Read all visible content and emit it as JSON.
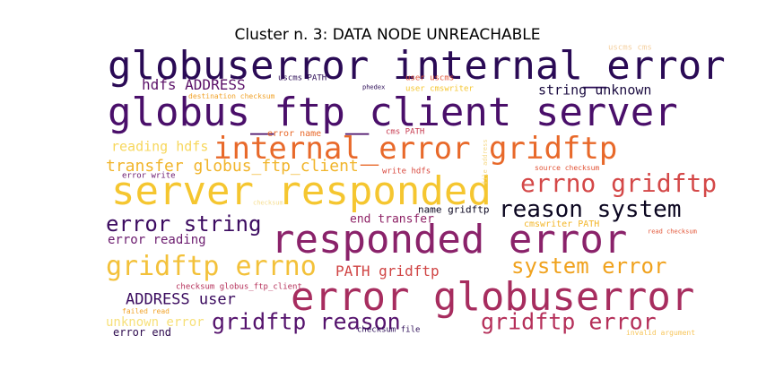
{
  "title": "Cluster n. 3: DATA NODE UNREACHABLE",
  "words": [
    {
      "text": "globuserror internal_error",
      "color": "#2a0a55"
    },
    {
      "text": "globus_ftp_client server",
      "color": "#4a0f6a"
    },
    {
      "text": "internal_error gridftp",
      "color": "#e8692a"
    },
    {
      "text": "server responded",
      "color": "#f5c630"
    },
    {
      "text": "responded error",
      "color": "#8a226a"
    },
    {
      "text": "error globuserror",
      "color": "#a72d5f"
    },
    {
      "text": "errno gridftp",
      "color": "#d44848"
    },
    {
      "text": "reason system",
      "color": "#0b0620"
    },
    {
      "text": "error string",
      "color": "#3c0b60"
    },
    {
      "text": "gridftp errno",
      "color": "#f3c13a"
    },
    {
      "text": "system error",
      "color": "#f0a21e"
    },
    {
      "text": "gridftp reason",
      "color": "#55136d"
    },
    {
      "text": "gridftp error",
      "color": "#b5305a"
    },
    {
      "text": "transfer globus_ftp_client",
      "color": "#f1b52c"
    },
    {
      "text": "hdfs ADDRESS",
      "color": "#5c1269"
    },
    {
      "text": "string unknown",
      "color": "#1b0c41"
    },
    {
      "text": "reading hdfs",
      "color": "#f7d75c"
    },
    {
      "text": "ADDRESS user",
      "color": "#3a0a5e"
    },
    {
      "text": "PATH gridftp",
      "color": "#d04545"
    },
    {
      "text": "error reading",
      "color": "#6b1b6e"
    },
    {
      "text": "end transfer",
      "color": "#8e2366"
    },
    {
      "text": "unknown error",
      "color": "#f7e07a"
    },
    {
      "text": "error end",
      "color": "#2d0a4e"
    },
    {
      "text": "name gridftp",
      "color": "#0b0620"
    },
    {
      "text": "uscms PATH",
      "color": "#2a0a55"
    },
    {
      "text": "phedex",
      "color": "#2a0a55"
    },
    {
      "text": "user uscms",
      "color": "#e25538"
    },
    {
      "text": "user cmswriter",
      "color": "#f5c630"
    },
    {
      "text": "destination checksum",
      "color": "#f1a32b"
    },
    {
      "text": "error name",
      "color": "#e8692a"
    },
    {
      "text": "cms PATH",
      "color": "#c73a4f"
    },
    {
      "text": "error write",
      "color": "#6a176e"
    },
    {
      "text": "write hdfs",
      "color": "#d9483e"
    },
    {
      "text": "source checksum",
      "color": "#e25538"
    },
    {
      "text": "cmswriter PATH",
      "color": "#f3b62a"
    },
    {
      "text": "checksum globus_ftp_client",
      "color": "#b5305a"
    },
    {
      "text": "failed read",
      "color": "#f1a32b"
    },
    {
      "text": "checksum file",
      "color": "#2a0a55"
    },
    {
      "text": "read checksum",
      "color": "#e25538"
    },
    {
      "text": "invalid argument",
      "color": "#f7c65c"
    },
    {
      "text": "uscms cms",
      "color": "#f5d0a0"
    },
    {
      "text": "file address",
      "color": "#f5d98a"
    },
    {
      "text": "checksum",
      "color": "#f5dd90"
    }
  ]
}
